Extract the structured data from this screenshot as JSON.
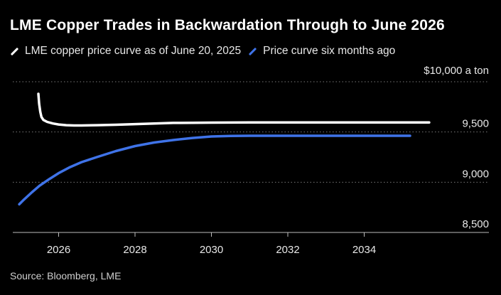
{
  "header": {
    "title": "LME Copper Trades in Backwardation Through to June 2026"
  },
  "footer": {
    "source": "Source: Bloomberg, LME"
  },
  "chart_data": {
    "type": "line",
    "title": "LME Copper Trades in Backwardation Through to June 2026",
    "ylabel": "$10,000 a ton",
    "xlim": [
      2024.8,
      2036.0
    ],
    "ylim": [
      8500,
      10000
    ],
    "x_ticks": [
      2026,
      2028,
      2030,
      2032,
      2034
    ],
    "x_tick_labels": [
      "2026",
      "2028",
      "2030",
      "2032",
      "2034"
    ],
    "y_ticks": [
      8500,
      9000,
      9500
    ],
    "y_tick_labels": [
      "8,500",
      "9,000",
      "9,500"
    ],
    "grid": "horizontal dotted",
    "legend_position": "top-left",
    "series": [
      {
        "name": "LME copper price curve as of June 20, 2025",
        "color": "#ffffff",
        "x": [
          2025.47,
          2025.49,
          2025.52,
          2025.55,
          2025.6,
          2025.7,
          2025.85,
          2026.0,
          2026.2,
          2026.4,
          2026.6,
          2027.0,
          2027.5,
          2028.0,
          2028.5,
          2029.0,
          2029.5,
          2030.0,
          2030.5,
          2031.0,
          2032.0,
          2033.0,
          2034.0,
          2035.0,
          2035.7
        ],
        "values": [
          9880,
          9780,
          9700,
          9650,
          9620,
          9600,
          9585,
          9575,
          9568,
          9565,
          9565,
          9568,
          9572,
          9578,
          9585,
          9590,
          9592,
          9593,
          9594,
          9595,
          9595,
          9595,
          9595,
          9595,
          9595
        ]
      },
      {
        "name": "Price curve six months ago",
        "color": "#3f73e8",
        "x": [
          2024.97,
          2025.1,
          2025.3,
          2025.5,
          2025.75,
          2026.0,
          2026.3,
          2026.6,
          2027.0,
          2027.5,
          2028.0,
          2028.5,
          2029.0,
          2029.5,
          2030.0,
          2030.5,
          2031.0,
          2032.0,
          2033.0,
          2034.0,
          2035.0,
          2035.2
        ],
        "values": [
          8780,
          8830,
          8900,
          8965,
          9030,
          9090,
          9150,
          9200,
          9250,
          9310,
          9360,
          9395,
          9420,
          9440,
          9455,
          9460,
          9462,
          9462,
          9462,
          9462,
          9462,
          9462
        ]
      }
    ]
  }
}
